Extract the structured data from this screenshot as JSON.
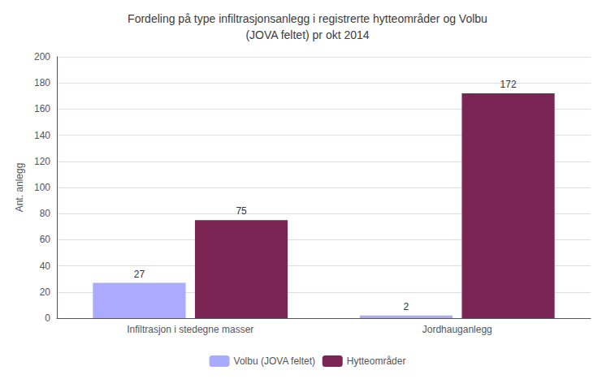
{
  "chart_data": {
    "type": "bar",
    "title": "Fordeling på type infiltrasjonsanlegg i registrerte hytteområder og Volbu\n(JOVA feltet) pr okt 2014",
    "categories": [
      "Infiltrasjon i stedegne masser",
      "Jordhauganlegg"
    ],
    "series": [
      {
        "name": "Volbu (JOVA feltet)",
        "color": "#aaaaff",
        "values": [
          27,
          2
        ]
      },
      {
        "name": "Hytteområder",
        "color": "#7b2555",
        "values": [
          75,
          172
        ]
      }
    ],
    "ylabel": "Ant. anlegg",
    "ylim": [
      0,
      200
    ],
    "yticks": [
      0,
      20,
      40,
      60,
      80,
      100,
      120,
      140,
      160,
      180,
      200
    ],
    "grid": true,
    "legend": "bottom",
    "data_labels": true
  }
}
